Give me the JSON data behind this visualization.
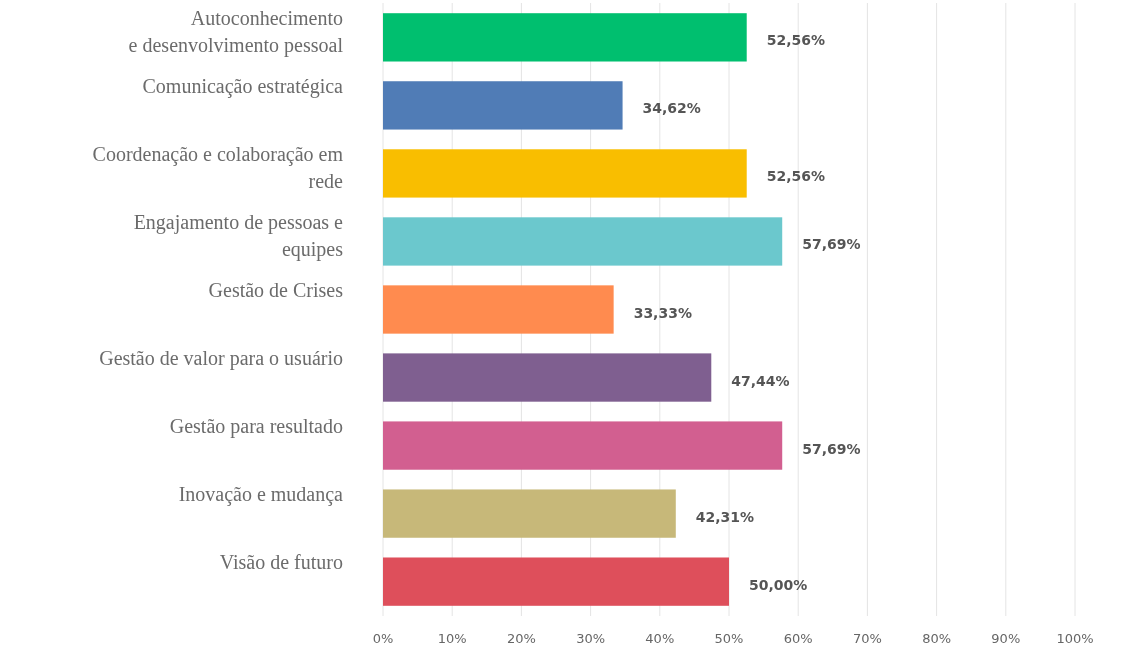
{
  "chart_data": {
    "type": "bar",
    "orientation": "horizontal",
    "categories": [
      "Autoconhecimento\ne desenvolvimento pessoal",
      "Comunicação estratégica",
      "Coordenação e colaboração em\nrede",
      "Engajamento de pessoas e\nequipes",
      "Gestão de Crises",
      "Gestão de valor para o usuário",
      "Gestão para resultado",
      "Inovação e mudança",
      "Visão de futuro"
    ],
    "values": [
      52.56,
      34.62,
      52.56,
      57.69,
      33.33,
      47.44,
      57.69,
      42.31,
      50.0
    ],
    "value_labels": [
      "52,56%",
      "34,62%",
      "52,56%",
      "57,69%",
      "33,33%",
      "47,44%",
      "57,69%",
      "42,31%",
      "50,00%"
    ],
    "colors": [
      "#00bf6f",
      "#507cb6",
      "#f9be00",
      "#6bc8cd",
      "#ff8b4f",
      "#7f5f90",
      "#d25f90",
      "#c7b879",
      "#de4f5b"
    ],
    "xlim": [
      0,
      100
    ],
    "xticks": [
      {
        "value": 0,
        "label": "0%"
      },
      {
        "value": 10,
        "label": "10%"
      },
      {
        "value": 20,
        "label": "20%"
      },
      {
        "value": 30,
        "label": "30%"
      },
      {
        "value": 40,
        "label": "40%"
      },
      {
        "value": 50,
        "label": "50%"
      },
      {
        "value": 60,
        "label": "60%"
      },
      {
        "value": 70,
        "label": "70%"
      },
      {
        "value": 80,
        "label": "80%"
      },
      {
        "value": 90,
        "label": "90%"
      },
      {
        "value": 100,
        "label": "100%"
      }
    ],
    "grid": "x"
  }
}
